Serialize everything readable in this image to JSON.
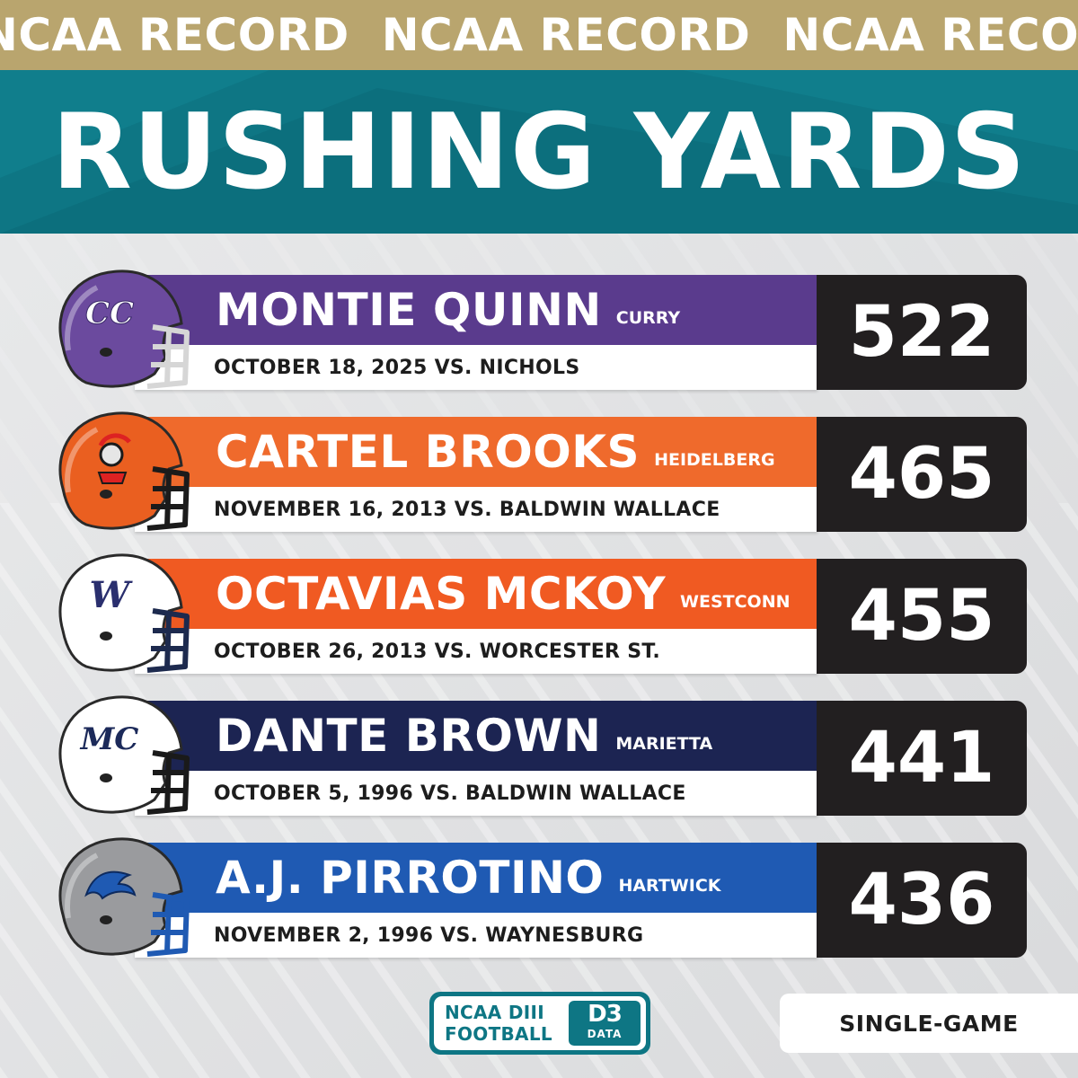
{
  "ticker": {
    "text": "NCAA RECORD"
  },
  "title": "RUSHING YARDS",
  "records": [
    {
      "name": "MONTIE QUINN",
      "school": "CURRY",
      "date": "OCTOBER 18, 2025 VS. NICHOLS",
      "yards": "522",
      "bar_color": "#5a3b8d",
      "shell_color": "#6b4a9e",
      "mask_color": "#d6d6d6",
      "helmet_logo": "CC",
      "logo_color": "#ffffff",
      "helmet_icon": "curry-helmet-icon"
    },
    {
      "name": "CARTEL BROOKS",
      "school": "HEIDELBERG",
      "date": "NOVEMBER 16, 2013 VS. BALDWIN WALLACE",
      "yards": "465",
      "bar_color": "#ef6a2c",
      "shell_color": "#ea5f20",
      "mask_color": "#1b1b1b",
      "helmet_logo": "",
      "logo_color": "#1b1b1b",
      "helmet_icon": "heidelberg-helmet-icon"
    },
    {
      "name": "OCTAVIAS MCKOY",
      "school": "WESTCONN",
      "date": "OCTOBER 26, 2013 VS. WORCESTER ST.",
      "yards": "455",
      "bar_color": "#f05a22",
      "shell_color": "#ffffff",
      "mask_color": "#1d2a4e",
      "helmet_logo": "W",
      "logo_color": "#2a2f6e",
      "helmet_icon": "westconn-helmet-icon"
    },
    {
      "name": "DANTE BROWN",
      "school": "MARIETTA",
      "date": "OCTOBER 5, 1996 VS. BALDWIN WALLACE",
      "yards": "441",
      "bar_color": "#1c2452",
      "shell_color": "#ffffff",
      "mask_color": "#1a1a1a",
      "helmet_logo": "MC",
      "logo_color": "#1c2a5a",
      "helmet_icon": "marietta-helmet-icon"
    },
    {
      "name": "A.J. PIRROTINO",
      "school": "HARTWICK",
      "date": "NOVEMBER 2, 1996 VS. WAYNESBURG",
      "yards": "436",
      "bar_color": "#1f5ab3",
      "shell_color": "#9a9b9e",
      "mask_color": "#1f5ab3",
      "helmet_logo": "",
      "logo_color": "#1f5ab3",
      "helmet_icon": "hartwick-helmet-icon"
    }
  ],
  "footer": {
    "logo_line1": "NCAA DIII",
    "logo_line2": "FOOTBALL",
    "badge_main": "D3",
    "badge_sub": "DATA",
    "category": "SINGLE-GAME"
  },
  "colors": {
    "gold": "#b9a56e",
    "teal": "#0e7684",
    "dark": "#221f20"
  }
}
